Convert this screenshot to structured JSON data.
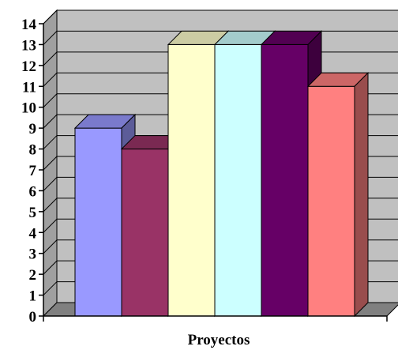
{
  "chart_data": {
    "type": "bar",
    "categories": [
      "Proyectos"
    ],
    "series": [
      {
        "values": [
          9
        ],
        "color": "#9999ff"
      },
      {
        "values": [
          8
        ],
        "color": "#993366"
      },
      {
        "values": [
          13
        ],
        "color": "#ffffcc"
      },
      {
        "values": [
          13
        ],
        "color": "#ccffff"
      },
      {
        "values": [
          13
        ],
        "color": "#660066"
      },
      {
        "values": [
          11
        ],
        "color": "#ff8080"
      }
    ],
    "title": "",
    "xlabel": "Proyectos",
    "ylabel": "",
    "ylim": [
      0,
      14
    ],
    "yticks": [
      "0",
      "1",
      "2",
      "3",
      "4",
      "5",
      "6",
      "7",
      "8",
      "9",
      "10",
      "11",
      "12",
      "13",
      "14"
    ],
    "grid": true,
    "legend": "none",
    "style": "3d-column",
    "wall_color": "#c0c0c0",
    "floor_color": "#808080"
  }
}
